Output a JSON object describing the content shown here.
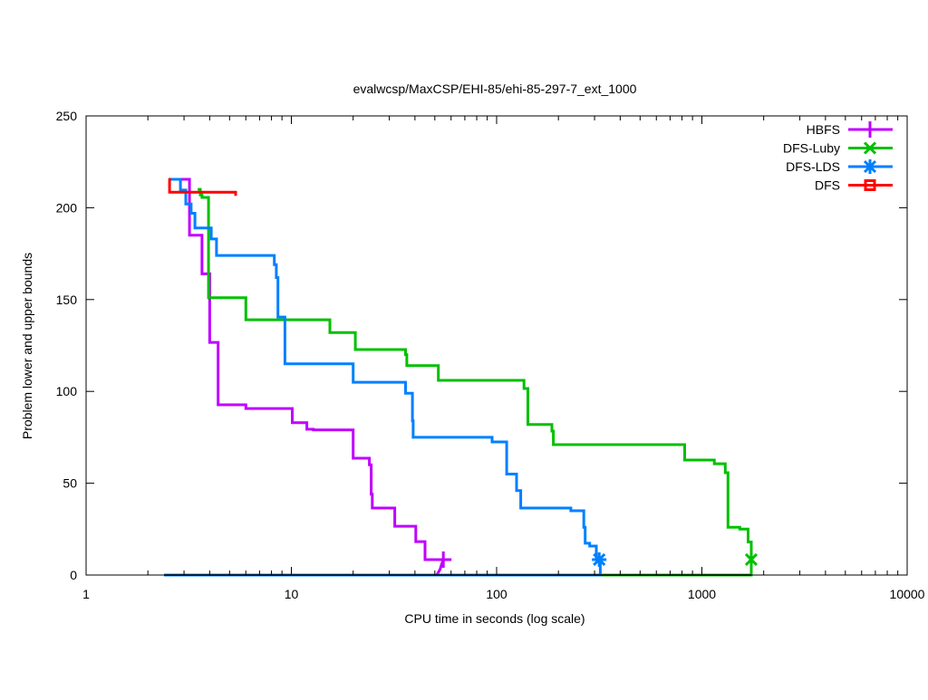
{
  "chart_data": {
    "type": "line",
    "title": "evalwcsp/MaxCSP/EHI-85/ehi-85-297-7_ext_1000",
    "xlabel": "CPU time in seconds (log scale)",
    "ylabel": "Problem lower and upper bounds",
    "xscale": "log",
    "xlim": [
      1,
      10000
    ],
    "ylim": [
      0,
      250
    ],
    "xticks": [
      1,
      10,
      100,
      1000,
      10000
    ],
    "xtick_labels": [
      "1",
      "10",
      "100",
      "1000",
      "10000"
    ],
    "yticks": [
      0,
      50,
      100,
      150,
      200,
      250
    ],
    "ytick_labels": [
      "0",
      "50",
      "100",
      "150",
      "200",
      "250"
    ],
    "grid": false,
    "legend_position": "top-right",
    "series": [
      {
        "name": "HBFS",
        "color": "#c000ff",
        "marker": "plus",
        "upper": [
          [
            2.9,
            215.5
          ],
          [
            3.19,
            215.5
          ],
          [
            3.19,
            185
          ],
          [
            3.67,
            185
          ],
          [
            3.67,
            164
          ],
          [
            4.0,
            164
          ],
          [
            4.0,
            126.7
          ],
          [
            4.4,
            126.7
          ],
          [
            4.4,
            92.7
          ],
          [
            6.0,
            92.7
          ],
          [
            6.0,
            90.7
          ],
          [
            10.1,
            90.7
          ],
          [
            10.1,
            83
          ],
          [
            11.9,
            83
          ],
          [
            11.9,
            79.4
          ],
          [
            12.8,
            79.4
          ],
          [
            12.8,
            79
          ],
          [
            20,
            79
          ],
          [
            20,
            63.6
          ],
          [
            24,
            63.6
          ],
          [
            24,
            60
          ],
          [
            24.5,
            60
          ],
          [
            24.5,
            44
          ],
          [
            24.8,
            44
          ],
          [
            24.8,
            36.5
          ],
          [
            31.9,
            36.5
          ],
          [
            31.9,
            26.6
          ],
          [
            40.4,
            26.6
          ],
          [
            40.4,
            18.2
          ],
          [
            44.8,
            18.2
          ],
          [
            44.8,
            8.4
          ],
          [
            55,
            8.4
          ]
        ],
        "lower": [
          [
            2.4,
            0
          ],
          [
            51,
            0
          ],
          [
            52,
            1.5
          ],
          [
            53,
            3
          ],
          [
            54,
            6
          ],
          [
            55,
            8.4
          ]
        ],
        "final": [
          55,
          8.4
        ]
      },
      {
        "name": "DFS-Luby",
        "color": "#00c000",
        "marker": "cross",
        "upper": [
          [
            3.5,
            210
          ],
          [
            3.6,
            210
          ],
          [
            3.6,
            207
          ],
          [
            3.67,
            207
          ],
          [
            3.67,
            205.6
          ],
          [
            3.95,
            205.6
          ],
          [
            3.95,
            151
          ],
          [
            6.0,
            151
          ],
          [
            6.0,
            139
          ],
          [
            15.4,
            139
          ],
          [
            15.4,
            132
          ],
          [
            20.5,
            132
          ],
          [
            20.5,
            122.8
          ],
          [
            36,
            122.8
          ],
          [
            36,
            120
          ],
          [
            36.5,
            120
          ],
          [
            36.5,
            114
          ],
          [
            52,
            114
          ],
          [
            52,
            106
          ],
          [
            136,
            106
          ],
          [
            136,
            101.6
          ],
          [
            142,
            101.6
          ],
          [
            142,
            82
          ],
          [
            186,
            82
          ],
          [
            186,
            78.4
          ],
          [
            189,
            78.4
          ],
          [
            189,
            71
          ],
          [
            824,
            71
          ],
          [
            824,
            62.6
          ],
          [
            1150,
            62.6
          ],
          [
            1150,
            60.6
          ],
          [
            1300,
            60.6
          ],
          [
            1300,
            55.7
          ],
          [
            1340,
            55.7
          ],
          [
            1340,
            26
          ],
          [
            1530,
            26
          ],
          [
            1530,
            25
          ],
          [
            1680,
            25
          ],
          [
            1680,
            18
          ],
          [
            1740,
            18
          ],
          [
            1740,
            8.4
          ]
        ],
        "lower": [
          [
            320,
            0
          ],
          [
            1740,
            0
          ],
          [
            1740,
            8.4
          ]
        ],
        "final": [
          1740,
          8.4
        ]
      },
      {
        "name": "DFS-LDS",
        "color": "#0080ff",
        "marker": "star",
        "upper": [
          [
            2.52,
            215.5
          ],
          [
            2.88,
            215.5
          ],
          [
            2.88,
            209.6
          ],
          [
            3.06,
            209.6
          ],
          [
            3.06,
            202
          ],
          [
            3.25,
            202
          ],
          [
            3.25,
            197
          ],
          [
            3.39,
            197
          ],
          [
            3.39,
            189
          ],
          [
            4.07,
            189
          ],
          [
            4.07,
            183
          ],
          [
            4.32,
            183
          ],
          [
            4.32,
            174
          ],
          [
            8.26,
            174
          ],
          [
            8.26,
            169
          ],
          [
            8.45,
            169
          ],
          [
            8.45,
            162
          ],
          [
            8.6,
            162
          ],
          [
            8.6,
            140.5
          ],
          [
            9.3,
            140.5
          ],
          [
            9.3,
            115
          ],
          [
            20,
            115
          ],
          [
            20,
            105
          ],
          [
            36,
            105
          ],
          [
            36,
            99
          ],
          [
            38.9,
            99
          ],
          [
            38.9,
            84
          ],
          [
            39.2,
            84
          ],
          [
            39.2,
            75
          ],
          [
            95,
            75
          ],
          [
            95,
            72.5
          ],
          [
            112,
            72.5
          ],
          [
            112,
            55
          ],
          [
            125,
            55
          ],
          [
            125,
            46
          ],
          [
            131,
            46
          ],
          [
            131,
            36.5
          ],
          [
            230,
            36.5
          ],
          [
            230,
            35
          ],
          [
            266,
            35
          ],
          [
            266,
            26
          ],
          [
            270,
            26
          ],
          [
            270,
            17.3
          ],
          [
            284,
            17.3
          ],
          [
            284,
            15.8
          ],
          [
            306,
            15.8
          ],
          [
            306,
            8.4
          ],
          [
            316,
            8.4
          ]
        ],
        "lower": [
          [
            2.4,
            0
          ],
          [
            320,
            0
          ],
          [
            320,
            8.4
          ]
        ],
        "final": [
          316,
          8.4
        ]
      },
      {
        "name": "DFS",
        "color": "#ff0000",
        "marker": "square",
        "upper": [
          [
            2.52,
            215.5
          ],
          [
            2.55,
            215.5
          ],
          [
            2.55,
            208.5
          ],
          [
            5.35,
            208.5
          ],
          [
            5.35,
            206.5
          ]
        ],
        "lower": []
      }
    ]
  }
}
